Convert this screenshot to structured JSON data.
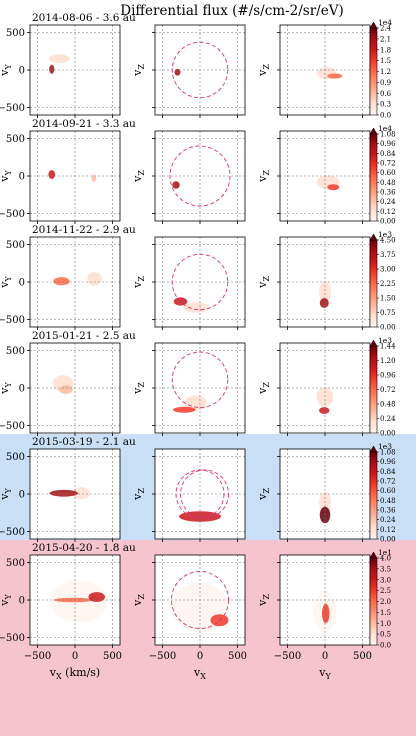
{
  "figure_title": "Differential flux (#/s/cm-2/sr/eV)",
  "chart_data": {
    "type": "heatmap",
    "title": "Differential flux (#/s/cm-2/sr/eV)",
    "panel_columns": [
      {
        "xlabel": "v_X (km/s)",
        "ylabel": "v_Y"
      },
      {
        "xlabel": "v_X",
        "ylabel": "v_Z"
      },
      {
        "xlabel": "v_Y",
        "ylabel": "v_Z"
      }
    ],
    "axis_range": [
      -600,
      600
    ],
    "ticks": [
      -500,
      0,
      500
    ],
    "grid": "dashed at v = -500, 0, 500",
    "colormap": "Reds",
    "rows": [
      {
        "label": "2014-08-06 - 3.6 au",
        "background": "#ffffff",
        "colorbar": {
          "max": 2.4,
          "ticks": [
            0.0,
            0.3,
            0.6,
            0.9,
            1.2,
            1.5,
            1.8,
            2.1,
            2.4
          ],
          "exponent": "1e4"
        },
        "circle": {
          "cx": 0,
          "cy": 0,
          "r": 370
        },
        "blobs": [
          [
            {
              "x": -310,
              "y": 10,
              "rx": 35,
              "ry": 60,
              "v": 0.9
            },
            {
              "x": -210,
              "y": 150,
              "rx": 140,
              "ry": 60,
              "v": 0.1
            }
          ],
          [
            {
              "x": -300,
              "y": -30,
              "rx": 40,
              "ry": 45,
              "v": 0.9
            }
          ],
          [
            {
              "x": 130,
              "y": -80,
              "rx": 100,
              "ry": 35,
              "v": 0.45
            },
            {
              "x": 20,
              "y": -40,
              "rx": 130,
              "ry": 80,
              "v": 0.1
            }
          ]
        ]
      },
      {
        "label": "2014-09-21 - 3.3 au",
        "background": "#ffffff",
        "colorbar": {
          "max": 1.08,
          "ticks": [
            0.0,
            0.12,
            0.24,
            0.36,
            0.48,
            0.6,
            0.72,
            0.84,
            0.96,
            1.08
          ],
          "exponent": "1e4"
        },
        "circle": {
          "cx": 0,
          "cy": 0,
          "r": 400
        },
        "blobs": [
          [
            {
              "x": -310,
              "y": 20,
              "rx": 45,
              "ry": 60,
              "v": 0.8
            },
            {
              "x": 250,
              "y": -30,
              "rx": 30,
              "ry": 50,
              "v": 0.2
            }
          ],
          [
            {
              "x": -320,
              "y": -120,
              "rx": 50,
              "ry": 50,
              "v": 0.85
            }
          ],
          [
            {
              "x": 110,
              "y": -150,
              "rx": 80,
              "ry": 40,
              "v": 0.6
            },
            {
              "x": 40,
              "y": -80,
              "rx": 150,
              "ry": 90,
              "v": 0.1
            }
          ]
        ]
      },
      {
        "label": "2014-11-22 - 2.9 au",
        "background": "#ffffff",
        "colorbar": {
          "max": 4.5,
          "ticks": [
            0.0,
            0.75,
            1.5,
            2.25,
            3.0,
            3.75,
            4.5
          ],
          "exponent": "1e3"
        },
        "circle": {
          "cx": 0,
          "cy": 0,
          "r": 370
        },
        "blobs": [
          [
            {
              "x": -180,
              "y": 10,
              "rx": 110,
              "ry": 55,
              "v": 0.55
            },
            {
              "x": 260,
              "y": 40,
              "rx": 100,
              "ry": 90,
              "v": 0.12
            }
          ],
          [
            {
              "x": -260,
              "y": -260,
              "rx": 90,
              "ry": 55,
              "v": 0.8
            },
            {
              "x": -50,
              "y": -340,
              "rx": 170,
              "ry": 70,
              "v": 0.12
            }
          ],
          [
            {
              "x": -10,
              "y": -280,
              "rx": 60,
              "ry": 65,
              "v": 0.85
            },
            {
              "x": 0,
              "y": -130,
              "rx": 80,
              "ry": 140,
              "v": 0.12
            }
          ]
        ]
      },
      {
        "label": "2015-01-21 - 2.5 au",
        "background": "#ffffff",
        "colorbar": {
          "max": 1.44,
          "ticks": [
            0.0,
            0.24,
            0.48,
            0.72,
            0.96,
            1.2,
            1.44
          ],
          "exponent": "1e3"
        },
        "circle": {
          "cx": 0,
          "cy": 110,
          "r": 370
        },
        "blobs": [
          [
            {
              "x": -120,
              "y": -20,
              "rx": 90,
              "ry": 60,
              "v": 0.3
            },
            {
              "x": -160,
              "y": 60,
              "rx": 140,
              "ry": 110,
              "v": 0.1
            }
          ],
          [
            {
              "x": -210,
              "y": -290,
              "rx": 150,
              "ry": 40,
              "v": 0.6
            },
            {
              "x": -60,
              "y": -200,
              "rx": 150,
              "ry": 100,
              "v": 0.08
            }
          ],
          [
            {
              "x": -10,
              "y": -300,
              "rx": 70,
              "ry": 45,
              "v": 0.7
            },
            {
              "x": 0,
              "y": -120,
              "rx": 110,
              "ry": 130,
              "v": 0.1
            }
          ]
        ]
      },
      {
        "label": "2015-03-19 - 2.1 au",
        "background": "#c9dff5",
        "colorbar": {
          "max": 1.08,
          "ticks": [
            0.0,
            0.12,
            0.24,
            0.36,
            0.48,
            0.6,
            0.72,
            0.84,
            0.96,
            1.08
          ],
          "exponent": "1e3"
        },
        "circle": {
          "cx": 0,
          "cy": 0,
          "r": 320
        },
        "circle2": {
          "cx": 60,
          "cy": 0,
          "r": 320
        },
        "blobs": [
          [
            {
              "x": -150,
              "y": 10,
              "rx": 190,
              "ry": 45,
              "v": 0.85
            },
            {
              "x": 80,
              "y": 10,
              "rx": 120,
              "ry": 80,
              "v": 0.15
            }
          ],
          [
            {
              "x": 0,
              "y": -300,
              "rx": 280,
              "ry": 70,
              "v": 0.7
            }
          ],
          [
            {
              "x": 0,
              "y": -280,
              "rx": 70,
              "ry": 110,
              "v": 0.95
            },
            {
              "x": 0,
              "y": -120,
              "rx": 80,
              "ry": 150,
              "v": 0.15
            }
          ]
        ]
      },
      {
        "label": "2015-04-20 - 1.8 au",
        "background": "#f5c4cf",
        "colorbar": {
          "max": 4.0,
          "ticks": [
            0.0,
            0.5,
            1.0,
            1.5,
            2.0,
            2.5,
            3.0,
            3.5,
            4.0
          ],
          "exponent": "1e1"
        },
        "circle": {
          "cx": 0,
          "cy": 0,
          "r": 380
        },
        "blobs": [
          [
            {
              "x": 290,
              "y": 40,
              "rx": 110,
              "ry": 65,
              "v": 0.8
            },
            {
              "x": -20,
              "y": 0,
              "rx": 260,
              "ry": 30,
              "v": 0.55
            },
            {
              "x": 50,
              "y": -20,
              "rx": 380,
              "ry": 280,
              "v": 0.06
            }
          ],
          [
            {
              "x": 260,
              "y": -270,
              "rx": 120,
              "ry": 80,
              "v": 0.6
            },
            {
              "x": 0,
              "y": -100,
              "rx": 380,
              "ry": 330,
              "v": 0.06
            }
          ],
          [
            {
              "x": 10,
              "y": -180,
              "rx": 50,
              "ry": 130,
              "v": 0.6
            },
            {
              "x": 0,
              "y": -150,
              "rx": 150,
              "ry": 280,
              "v": 0.06
            }
          ]
        ]
      }
    ]
  }
}
